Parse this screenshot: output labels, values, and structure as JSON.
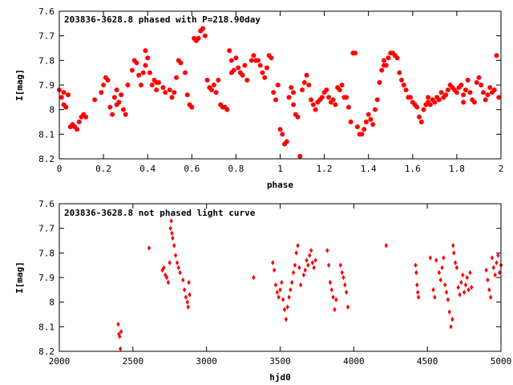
{
  "colors": {
    "points": "#ff0000",
    "axis": "#000000",
    "background": "#ffffff"
  },
  "chart_data": [
    {
      "type": "scatter",
      "title": "203836-3628.8 phased with P=218.90day",
      "xlabel": "phase",
      "ylabel": "I[mag]",
      "xlim": [
        0,
        2
      ],
      "ylim": [
        7.6,
        8.2
      ],
      "y_inverted": true,
      "grid": false,
      "marker": "filled-circle",
      "xticks": [
        0,
        0.2,
        0.4,
        0.6,
        0.8,
        1,
        1.2,
        1.4,
        1.6,
        1.8,
        2
      ],
      "xtick_labels": [
        "0",
        "0.2",
        "0.4",
        "0.6",
        "0.8",
        "1",
        "1.2",
        "1.4",
        "1.6",
        "1.8",
        "2"
      ],
      "yticks": [
        7.6,
        7.7,
        7.8,
        7.9,
        8.0,
        8.1,
        8.2
      ],
      "ytick_labels": [
        "7.6",
        "7.7",
        "7.8",
        "7.9",
        "8",
        "8.1",
        "8.2"
      ],
      "points": [
        [
          0.0,
          7.92
        ],
        [
          0.01,
          7.95
        ],
        [
          0.02,
          7.98
        ],
        [
          0.03,
          7.99
        ],
        [
          0.04,
          7.94
        ],
        [
          0.05,
          8.07
        ],
        [
          0.06,
          8.06
        ],
        [
          0.07,
          8.07
        ],
        [
          0.08,
          8.08
        ],
        [
          0.09,
          8.05
        ],
        [
          0.1,
          8.03
        ],
        [
          0.11,
          8.02
        ],
        [
          0.12,
          8.03
        ],
        [
          0.16,
          7.96
        ],
        [
          0.19,
          7.93
        ],
        [
          0.2,
          7.9
        ],
        [
          0.21,
          7.87
        ],
        [
          0.22,
          7.88
        ],
        [
          0.23,
          7.99
        ],
        [
          0.24,
          8.02
        ],
        [
          0.25,
          7.95
        ],
        [
          0.26,
          7.92
        ],
        [
          0.27,
          7.97
        ],
        [
          0.28,
          7.94
        ],
        [
          0.29,
          8.0
        ],
        [
          0.3,
          8.02
        ],
        [
          0.31,
          7.9
        ],
        [
          0.33,
          7.84
        ],
        [
          0.34,
          7.8
        ],
        [
          0.35,
          7.81
        ],
        [
          0.36,
          7.86
        ],
        [
          0.37,
          7.9
        ],
        [
          0.38,
          7.85
        ],
        [
          0.39,
          7.76
        ],
        [
          0.4,
          7.79
        ],
        [
          0.41,
          7.85
        ],
        [
          0.42,
          7.9
        ],
        [
          0.43,
          7.88
        ],
        [
          0.44,
          7.92
        ],
        [
          0.45,
          7.89
        ],
        [
          0.47,
          7.91
        ],
        [
          0.48,
          7.93
        ],
        [
          0.5,
          7.92
        ],
        [
          0.51,
          7.95
        ],
        [
          0.52,
          7.93
        ],
        [
          0.53,
          7.87
        ],
        [
          0.54,
          7.8
        ],
        [
          0.55,
          7.81
        ],
        [
          0.57,
          7.85
        ],
        [
          0.58,
          7.94
        ],
        [
          0.59,
          7.98
        ],
        [
          0.6,
          7.99
        ],
        [
          0.61,
          7.71
        ],
        [
          0.62,
          7.72
        ],
        [
          0.63,
          7.71
        ],
        [
          0.64,
          7.68
        ],
        [
          0.65,
          7.67
        ],
        [
          0.66,
          7.7
        ],
        [
          0.67,
          7.88
        ],
        [
          0.68,
          7.91
        ],
        [
          0.69,
          7.92
        ],
        [
          0.7,
          7.9
        ],
        [
          0.71,
          7.93
        ],
        [
          0.72,
          7.88
        ],
        [
          0.73,
          7.98
        ],
        [
          0.74,
          7.99
        ],
        [
          0.75,
          7.99
        ],
        [
          0.76,
          8.0
        ],
        [
          0.77,
          7.76
        ],
        [
          0.78,
          7.8
        ],
        [
          0.79,
          7.84
        ],
        [
          0.8,
          7.79
        ],
        [
          0.81,
          7.83
        ],
        [
          0.82,
          7.85
        ],
        [
          0.83,
          7.86
        ],
        [
          0.84,
          7.82
        ],
        [
          0.85,
          7.88
        ],
        [
          0.87,
          7.8
        ],
        [
          0.88,
          7.78
        ],
        [
          0.89,
          7.8
        ],
        [
          0.9,
          7.8
        ],
        [
          0.91,
          7.82
        ],
        [
          0.92,
          7.85
        ],
        [
          0.93,
          7.87
        ],
        [
          0.94,
          7.83
        ],
        [
          0.95,
          7.78
        ],
        [
          0.96,
          7.79
        ],
        [
          0.97,
          7.93
        ],
        [
          0.98,
          7.96
        ],
        [
          0.99,
          7.9
        ],
        [
          1.0,
          8.08
        ],
        [
          1.01,
          8.1
        ],
        [
          1.02,
          8.14
        ],
        [
          1.03,
          8.13
        ],
        [
          1.04,
          7.95
        ],
        [
          1.05,
          7.91
        ],
        [
          1.06,
          7.98
        ],
        [
          1.07,
          8.02
        ],
        [
          1.08,
          8.03
        ],
        [
          1.09,
          8.19
        ],
        [
          1.1,
          7.92
        ],
        [
          1.11,
          7.89
        ],
        [
          1.12,
          7.86
        ],
        [
          1.13,
          7.9
        ],
        [
          1.14,
          7.96
        ],
        [
          1.15,
          7.98
        ],
        [
          1.16,
          8.0
        ],
        [
          1.17,
          7.97
        ],
        [
          1.18,
          7.96
        ],
        [
          1.19,
          7.95
        ],
        [
          1.2,
          7.93
        ],
        [
          1.21,
          7.92
        ],
        [
          1.22,
          7.95
        ],
        [
          1.23,
          7.97
        ],
        [
          1.24,
          7.96
        ],
        [
          1.25,
          7.98
        ],
        [
          1.26,
          7.91
        ],
        [
          1.27,
          7.92
        ],
        [
          1.28,
          7.9
        ],
        [
          1.29,
          7.95
        ],
        [
          1.3,
          7.95
        ],
        [
          1.31,
          7.99
        ],
        [
          1.32,
          8.05
        ],
        [
          1.33,
          7.77
        ],
        [
          1.34,
          7.77
        ],
        [
          1.35,
          8.07
        ],
        [
          1.36,
          8.1
        ],
        [
          1.37,
          8.1
        ],
        [
          1.38,
          8.08
        ],
        [
          1.39,
          8.05
        ],
        [
          1.4,
          8.02
        ],
        [
          1.41,
          8.04
        ],
        [
          1.42,
          8.06
        ],
        [
          1.43,
          8.0
        ],
        [
          1.44,
          7.96
        ],
        [
          1.45,
          7.89
        ],
        [
          1.46,
          7.84
        ],
        [
          1.47,
          7.8
        ],
        [
          1.48,
          7.82
        ],
        [
          1.49,
          7.79
        ],
        [
          1.5,
          7.77
        ],
        [
          1.51,
          7.77
        ],
        [
          1.52,
          7.78
        ],
        [
          1.53,
          7.79
        ],
        [
          1.54,
          7.85
        ],
        [
          1.55,
          7.88
        ],
        [
          1.56,
          7.9
        ],
        [
          1.57,
          7.92
        ],
        [
          1.58,
          7.95
        ],
        [
          1.59,
          7.95
        ],
        [
          1.6,
          7.97
        ],
        [
          1.61,
          7.98
        ],
        [
          1.62,
          7.99
        ],
        [
          1.63,
          8.03
        ],
        [
          1.64,
          8.05
        ],
        [
          1.65,
          8.0
        ],
        [
          1.66,
          7.98
        ],
        [
          1.67,
          7.97
        ],
        [
          1.68,
          7.98
        ],
        [
          1.69,
          7.96
        ],
        [
          1.7,
          7.97
        ],
        [
          1.71,
          7.95
        ],
        [
          1.72,
          7.96
        ],
        [
          1.73,
          7.93
        ],
        [
          1.74,
          7.95
        ],
        [
          1.75,
          7.94
        ],
        [
          1.76,
          7.92
        ],
        [
          1.77,
          7.9
        ],
        [
          1.78,
          7.91
        ],
        [
          1.79,
          7.92
        ],
        [
          1.8,
          7.93
        ],
        [
          1.81,
          7.91
        ],
        [
          1.82,
          7.9
        ],
        [
          1.83,
          7.94
        ],
        [
          1.84,
          7.92
        ],
        [
          1.85,
          7.88
        ],
        [
          1.86,
          7.93
        ],
        [
          1.87,
          7.96
        ],
        [
          1.88,
          7.97
        ],
        [
          1.89,
          7.89
        ],
        [
          1.9,
          7.87
        ],
        [
          1.91,
          7.9
        ],
        [
          1.92,
          7.93
        ],
        [
          1.93,
          7.96
        ],
        [
          1.94,
          7.94
        ],
        [
          1.95,
          7.91
        ],
        [
          1.96,
          7.93
        ],
        [
          1.97,
          7.92
        ],
        [
          1.98,
          7.78
        ],
        [
          1.99,
          7.95
        ],
        [
          0.02,
          7.93
        ],
        [
          0.26,
          7.98
        ],
        [
          0.39,
          7.82
        ],
        [
          0.44,
          7.89
        ],
        [
          0.64,
          7.68
        ],
        [
          0.78,
          7.85
        ],
        [
          1.06,
          7.93
        ],
        [
          1.47,
          7.82
        ],
        [
          1.67,
          7.95
        ],
        [
          1.83,
          7.97
        ]
      ]
    },
    {
      "type": "scatter",
      "title": "203836-3628.8 not phased light curve",
      "xlabel": "hjd0",
      "ylabel": "I[mag]",
      "xlim": [
        2000,
        5000
      ],
      "ylim": [
        7.6,
        8.2
      ],
      "y_inverted": true,
      "grid": false,
      "marker": "diamond",
      "xticks": [
        2000,
        2500,
        3000,
        3500,
        4000,
        4500,
        5000
      ],
      "xtick_labels": [
        "2000",
        "2500",
        "3000",
        "3500",
        "4000",
        "4500",
        "5000"
      ],
      "yticks": [
        7.6,
        7.7,
        7.8,
        7.9,
        8.0,
        8.1,
        8.2
      ],
      "ytick_labels": [
        "7.6",
        "7.7",
        "7.8",
        "7.9",
        "8",
        "8.1",
        "8.2"
      ],
      "points": [
        [
          2400,
          8.09
        ],
        [
          2405,
          8.13
        ],
        [
          2410,
          8.14
        ],
        [
          2415,
          8.19
        ],
        [
          2420,
          8.12
        ],
        [
          2610,
          7.78
        ],
        [
          2700,
          7.87
        ],
        [
          2710,
          7.86
        ],
        [
          2720,
          7.89
        ],
        [
          2730,
          7.9
        ],
        [
          2740,
          7.92
        ],
        [
          2750,
          7.84
        ],
        [
          2755,
          7.7
        ],
        [
          2760,
          7.67
        ],
        [
          2765,
          7.72
        ],
        [
          2770,
          7.74
        ],
        [
          2780,
          7.77
        ],
        [
          2790,
          7.81
        ],
        [
          2800,
          7.84
        ],
        [
          2810,
          7.86
        ],
        [
          2820,
          7.88
        ],
        [
          2840,
          7.91
        ],
        [
          2850,
          7.95
        ],
        [
          2860,
          7.98
        ],
        [
          2870,
          8.0
        ],
        [
          2875,
          8.02
        ],
        [
          2880,
          7.92
        ],
        [
          2885,
          7.97
        ],
        [
          3320,
          7.9
        ],
        [
          3450,
          7.84
        ],
        [
          3460,
          7.87
        ],
        [
          3470,
          7.93
        ],
        [
          3480,
          7.96
        ],
        [
          3490,
          7.98
        ],
        [
          3500,
          7.95
        ],
        [
          3510,
          7.92
        ],
        [
          3520,
          7.99
        ],
        [
          3530,
          8.03
        ],
        [
          3540,
          8.07
        ],
        [
          3550,
          8.02
        ],
        [
          3560,
          7.98
        ],
        [
          3570,
          7.95
        ],
        [
          3580,
          7.92
        ],
        [
          3590,
          7.88
        ],
        [
          3600,
          7.85
        ],
        [
          3610,
          7.8
        ],
        [
          3620,
          7.77
        ],
        [
          3630,
          7.86
        ],
        [
          3640,
          7.93
        ],
        [
          3660,
          7.89
        ],
        [
          3670,
          7.87
        ],
        [
          3680,
          7.83
        ],
        [
          3690,
          7.85
        ],
        [
          3700,
          7.81
        ],
        [
          3710,
          7.79
        ],
        [
          3720,
          7.84
        ],
        [
          3730,
          7.86
        ],
        [
          3740,
          7.83
        ],
        [
          3820,
          7.79
        ],
        [
          3830,
          7.85
        ],
        [
          3840,
          7.92
        ],
        [
          3850,
          7.95
        ],
        [
          3860,
          7.98
        ],
        [
          3870,
          8.03
        ],
        [
          3880,
          7.99
        ],
        [
          3910,
          7.85
        ],
        [
          3920,
          7.88
        ],
        [
          3930,
          7.9
        ],
        [
          3940,
          7.93
        ],
        [
          3950,
          7.96
        ],
        [
          3960,
          8.02
        ],
        [
          4220,
          7.77
        ],
        [
          4420,
          7.85
        ],
        [
          4425,
          7.88
        ],
        [
          4430,
          7.93
        ],
        [
          4435,
          7.96
        ],
        [
          4440,
          7.98
        ],
        [
          4520,
          7.82
        ],
        [
          4540,
          7.95
        ],
        [
          4550,
          7.98
        ],
        [
          4560,
          7.83
        ],
        [
          4580,
          7.88
        ],
        [
          4590,
          7.91
        ],
        [
          4600,
          7.86
        ],
        [
          4610,
          7.82
        ],
        [
          4620,
          7.93
        ],
        [
          4630,
          7.96
        ],
        [
          4640,
          7.99
        ],
        [
          4650,
          8.04
        ],
        [
          4660,
          8.1
        ],
        [
          4670,
          8.07
        ],
        [
          4675,
          7.77
        ],
        [
          4680,
          7.8
        ],
        [
          4690,
          7.84
        ],
        [
          4700,
          7.86
        ],
        [
          4710,
          7.94
        ],
        [
          4720,
          7.97
        ],
        [
          4730,
          7.92
        ],
        [
          4740,
          7.89
        ],
        [
          4750,
          7.96
        ],
        [
          4760,
          7.93
        ],
        [
          4770,
          7.9
        ],
        [
          4780,
          7.95
        ],
        [
          4790,
          7.88
        ],
        [
          4800,
          7.94
        ],
        [
          4900,
          7.87
        ],
        [
          4910,
          7.91
        ],
        [
          4920,
          7.95
        ],
        [
          4930,
          7.98
        ],
        [
          4940,
          7.82
        ],
        [
          4950,
          7.86
        ],
        [
          4960,
          7.89
        ],
        [
          4970,
          7.84
        ],
        [
          4980,
          7.81
        ],
        [
          4990,
          7.88
        ],
        [
          5000,
          7.85
        ]
      ]
    }
  ]
}
